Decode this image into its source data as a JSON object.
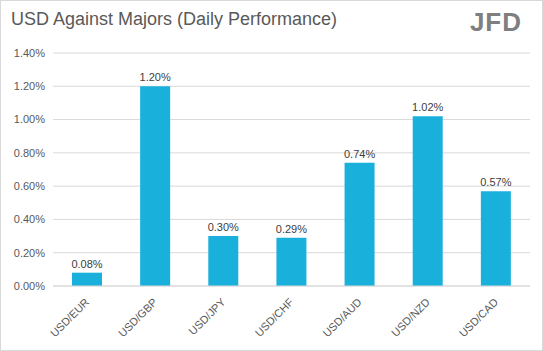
{
  "chart_data": {
    "type": "bar",
    "title": "USD Against Majors (Daily Performance)",
    "annotation": "JFD",
    "categories": [
      "USD/EUR",
      "USD/GBP",
      "USD/JPY",
      "USD/CHF",
      "USD/AUD",
      "USD/NZD",
      "USD/CAD"
    ],
    "values": [
      0.08,
      1.2,
      0.3,
      0.29,
      0.74,
      1.02,
      0.57
    ],
    "value_labels": [
      "0.08%",
      "1.20%",
      "0.30%",
      "0.29%",
      "0.74%",
      "1.02%",
      "0.57%"
    ],
    "color": "#1ab0dc",
    "ylim": [
      0,
      1.4
    ],
    "yticks": [
      {
        "value": 0,
        "label": "0.00%"
      },
      {
        "value": 0.2,
        "label": "0.20%"
      },
      {
        "value": 0.4,
        "label": "0.40%"
      },
      {
        "value": 0.6,
        "label": "0.60%"
      },
      {
        "value": 0.8,
        "label": "0.80%"
      },
      {
        "value": 1,
        "label": "1.00%"
      },
      {
        "value": 1.2,
        "label": "1.20%"
      },
      {
        "value": 1.4,
        "label": "1.40%"
      }
    ],
    "grid": true,
    "data_labels": true
  }
}
